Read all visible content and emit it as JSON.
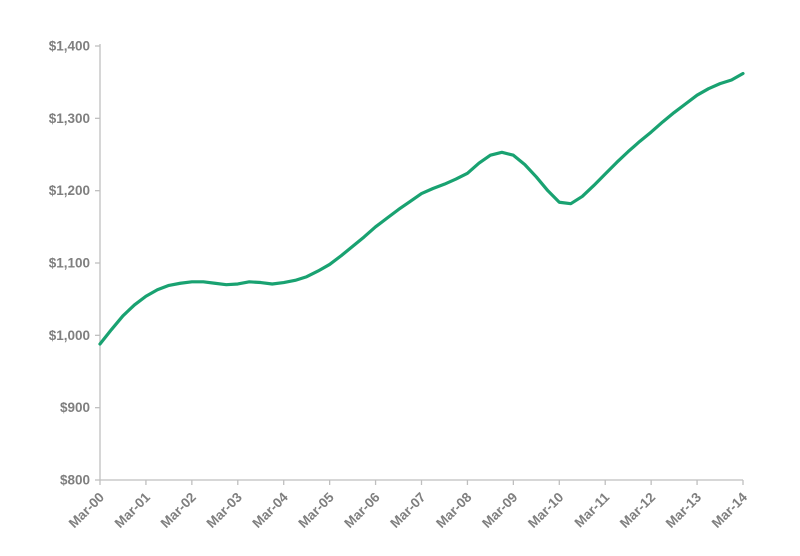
{
  "chart_data": {
    "type": "line",
    "title": "",
    "xlabel": "",
    "ylabel": "",
    "grid": false,
    "legend": "none",
    "ylim": [
      800,
      1400
    ],
    "y_ticks": [
      {
        "value": 800,
        "label": "$800"
      },
      {
        "value": 900,
        "label": "$900"
      },
      {
        "value": 1000,
        "label": "$1,000"
      },
      {
        "value": 1100,
        "label": "$1,100"
      },
      {
        "value": 1200,
        "label": "$1,200"
      },
      {
        "value": 1300,
        "label": "$1,300"
      },
      {
        "value": 1400,
        "label": "$1,400"
      }
    ],
    "x_tick_labels": [
      "Mar-00",
      "Mar-01",
      "Mar-02",
      "Mar-03",
      "Mar-04",
      "Mar-05",
      "Mar-06",
      "Mar-07",
      "Mar-08",
      "Mar-09",
      "Mar-10",
      "Mar-11",
      "Mar-12",
      "Mar-13",
      "Mar-14"
    ],
    "series": [
      {
        "name": "value-index",
        "color": "#19a271",
        "line_width": 3.2,
        "frequency": "quarterly",
        "start": "Mar-00",
        "end": "Mar-14",
        "values": [
          988,
          1008,
          1027,
          1042,
          1054,
          1063,
          1069,
          1072,
          1074,
          1074,
          1072,
          1070,
          1071,
          1074,
          1073,
          1071,
          1073,
          1076,
          1081,
          1089,
          1098,
          1110,
          1123,
          1136,
          1150,
          1162,
          1174,
          1185,
          1196,
          1203,
          1209,
          1216,
          1224,
          1238,
          1249,
          1253,
          1249,
          1236,
          1219,
          1200,
          1184,
          1182,
          1192,
          1207,
          1223,
          1239,
          1254,
          1268,
          1281,
          1295,
          1308,
          1320,
          1332,
          1341,
          1348,
          1353,
          1362
        ]
      }
    ],
    "colors": {
      "axis": "#bfbfbf",
      "tick_label": "#7f7f7f",
      "background": "#ffffff"
    }
  }
}
